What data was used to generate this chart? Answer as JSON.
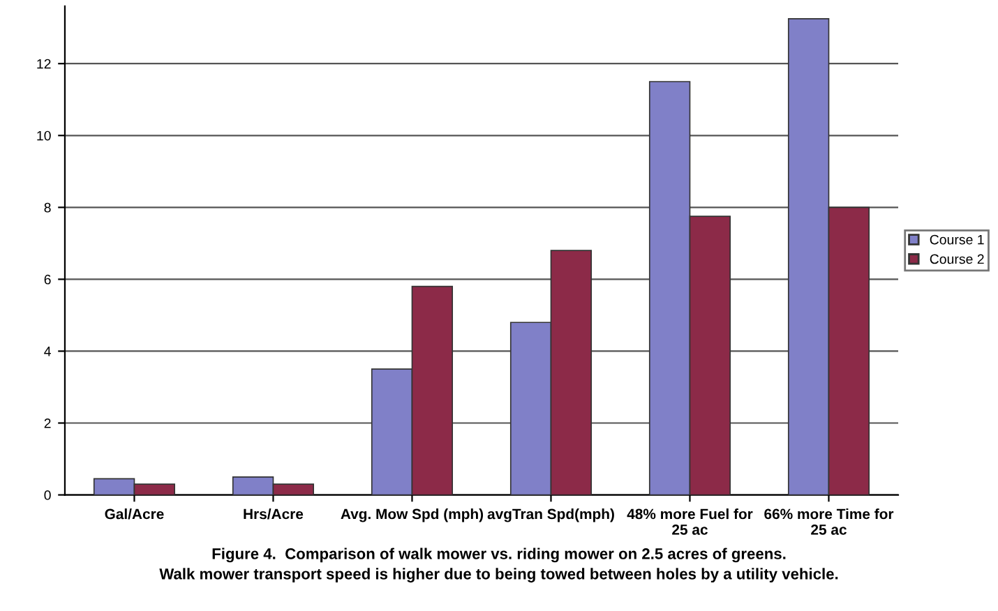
{
  "chart_data": {
    "type": "bar",
    "categories": [
      "Gal/Acre",
      "Hrs/Acre",
      "Avg. Mow Spd (mph)",
      "avgTran Spd(mph)",
      "48% more Fuel for\n25 ac",
      "66% more Time for\n25 ac"
    ],
    "series": [
      {
        "name": "Course 1",
        "color": "#8080c8",
        "values": [
          0.45,
          0.5,
          3.5,
          4.8,
          11.5,
          13.25
        ]
      },
      {
        "name": "Course 2",
        "color": "#8c2a48",
        "values": [
          0.3,
          0.3,
          5.8,
          6.8,
          7.75,
          8.0
        ]
      }
    ],
    "ylim": [
      0,
      13.6
    ],
    "yticks": [
      0,
      2,
      4,
      6,
      8,
      10,
      12
    ],
    "grid": "y",
    "legend": "right",
    "annotations": [
      "Figure 4.  Comparison of walk mower vs. riding mower on 2.5 acres of greens.\nWalk mower transport speed is higher due to being towed between holes by a utility vehicle."
    ]
  }
}
